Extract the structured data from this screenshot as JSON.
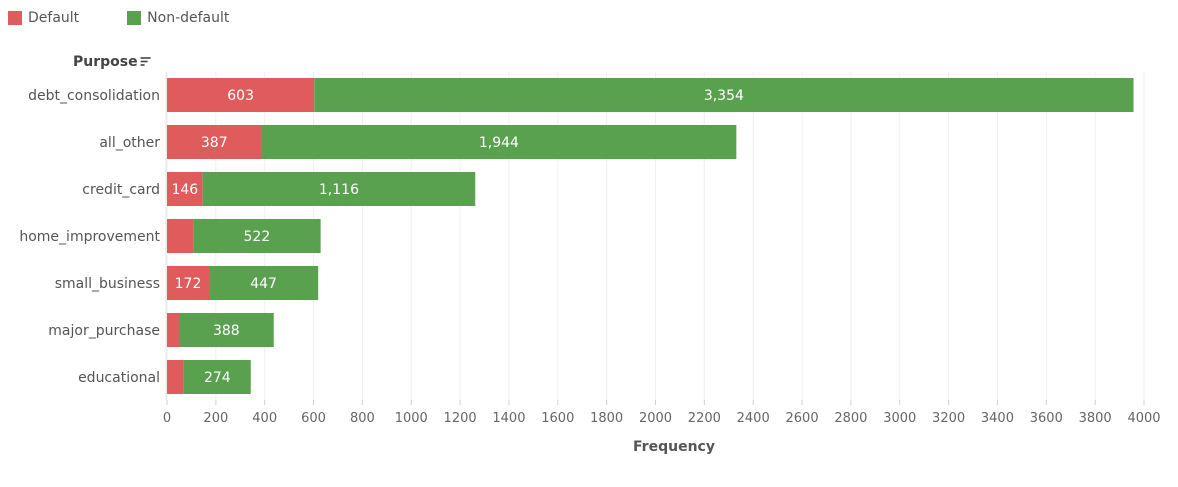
{
  "chart_data": {
    "type": "bar",
    "orientation": "horizontal",
    "stacked": true,
    "title": "",
    "ylabel": "Purpose",
    "xlabel": "Frequency",
    "categories": [
      "debt_consolidation",
      "all_other",
      "credit_card",
      "home_improvement",
      "small_business",
      "major_purchase",
      "educational"
    ],
    "series": [
      {
        "name": "Default",
        "color": "#e05b5b",
        "values": [
          603,
          387,
          146,
          107,
          172,
          49,
          69
        ],
        "labels": [
          "603",
          "387",
          "146",
          "",
          "172",
          "",
          ""
        ]
      },
      {
        "name": "Non-default",
        "color": "#59a14f",
        "values": [
          3354,
          1944,
          1116,
          522,
          447,
          388,
          274
        ],
        "labels": [
          "3,354",
          "1,944",
          "1,116",
          "522",
          "447",
          "388",
          "274"
        ]
      }
    ],
    "xlim": [
      0,
      4000
    ],
    "xticks": [
      0,
      200,
      400,
      600,
      800,
      1000,
      1200,
      1400,
      1600,
      1800,
      2000,
      2200,
      2400,
      2600,
      2800,
      3000,
      3200,
      3400,
      3600,
      3800,
      4000
    ],
    "grid": true,
    "legend_position": "top-left",
    "sort_icon": "sort-descending-icon"
  }
}
